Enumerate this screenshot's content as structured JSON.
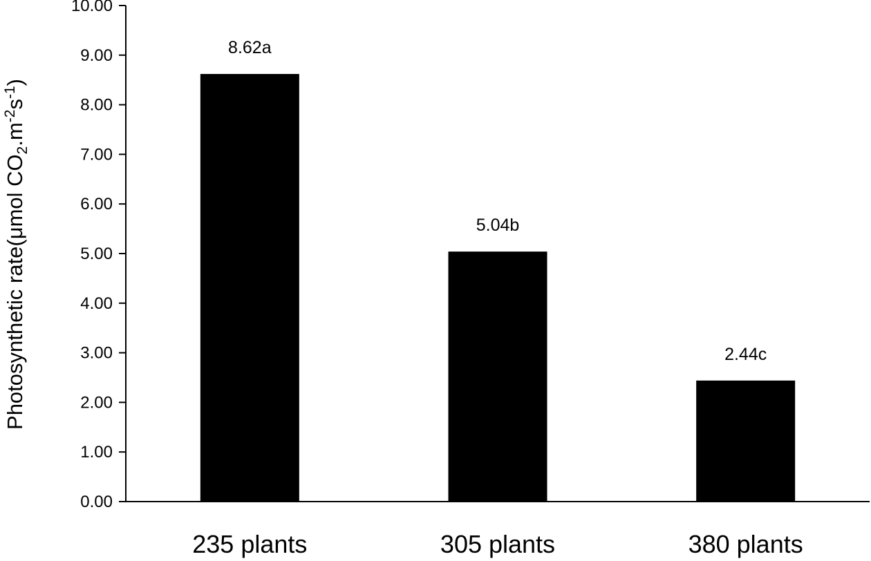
{
  "chart_data": {
    "type": "bar",
    "categories": [
      "235 plants",
      "305 plants",
      "380 plants"
    ],
    "values": [
      8.62,
      5.04,
      2.44
    ],
    "data_labels": [
      "8.62a",
      "5.04b",
      "2.44c"
    ],
    "title": "",
    "xlabel": "",
    "ylabel_prefix": "Photosynthetic rate(μmol CO",
    "ylabel_sub": "2",
    "ylabel_mid": ".m",
    "ylabel_sup1": "-2",
    "ylabel_s": "s",
    "ylabel_sup2": "-1",
    "ylabel_end": ")",
    "ylim": [
      0,
      10
    ],
    "yticks": [
      "0.00",
      "1.00",
      "2.00",
      "3.00",
      "4.00",
      "5.00",
      "6.00",
      "7.00",
      "8.00",
      "9.00",
      "10.00"
    ],
    "bar_color": "#000000",
    "grid": false,
    "legend": "none"
  }
}
